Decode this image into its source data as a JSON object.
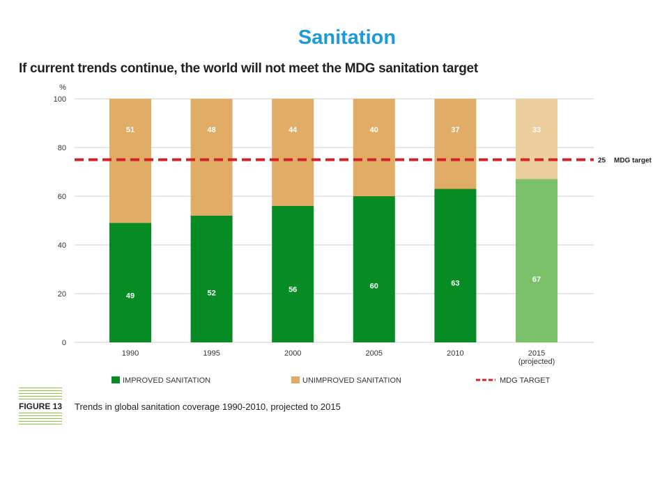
{
  "slide": {
    "title": "Sanitation"
  },
  "figure": {
    "badge_text": "FIGURE 13",
    "caption": "Trends in global sanitation coverage 1990-2010, projected to 2015"
  },
  "chart_data": {
    "type": "bar",
    "stacked": true,
    "title": "If current trends continue, the world will not meet the MDG sanitation target",
    "ylabel": "%",
    "ylim": [
      0,
      100
    ],
    "yticks": [
      0,
      20,
      40,
      60,
      80,
      100
    ],
    "grid": true,
    "categories": [
      "1990",
      "1995",
      "2000",
      "2005",
      "2010",
      "2015"
    ],
    "category_sublabels": [
      "",
      "",
      "",
      "",
      "",
      "(projected)"
    ],
    "projected_index": 5,
    "series": [
      {
        "name": "IMPROVED SANITATION",
        "color": "#078c25",
        "projected_color": "#7ac16a",
        "values": [
          49,
          52,
          56,
          60,
          63,
          67
        ]
      },
      {
        "name": "UNIMPROVED SANITATION",
        "color": "#e0ac66",
        "projected_color": "#eccf9c",
        "values": [
          51,
          48,
          44,
          40,
          37,
          33
        ]
      }
    ],
    "reference_line": {
      "name": "MDG TARGET",
      "y": 75,
      "color": "#d42027",
      "value_label": "25",
      "text_label": "MDG target"
    },
    "legend_position": "bottom"
  }
}
